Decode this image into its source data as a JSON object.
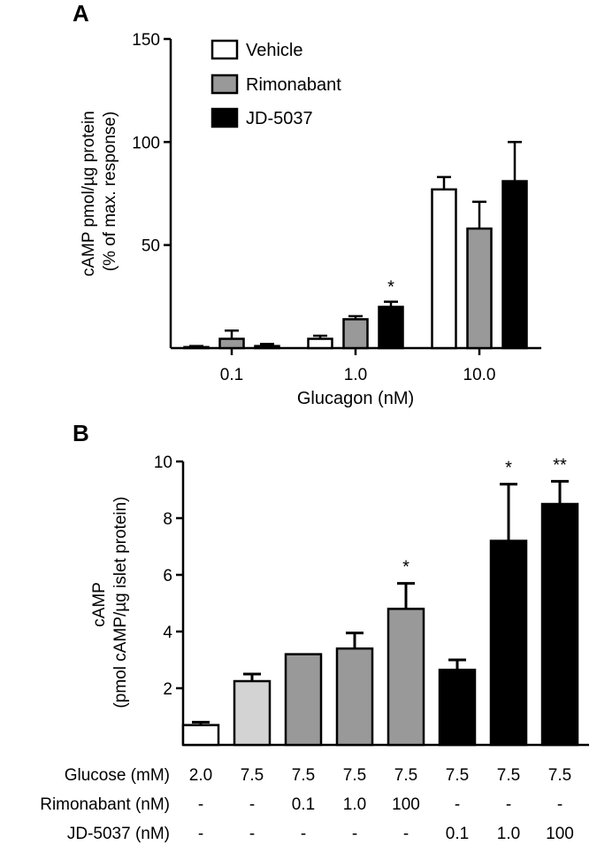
{
  "chart_data": [
    {
      "type": "bar",
      "panel_label": "A",
      "xlabel": "Glucagon (nM)",
      "ylabel_lines": [
        "cAMP pmol/µg protein",
        "(% of max. response)"
      ],
      "ylim": [
        0,
        150
      ],
      "yticks": [
        "50",
        "100",
        "150"
      ],
      "categories": [
        "0.1",
        "1.0",
        "10.0"
      ],
      "legend_position": "top-left",
      "series": [
        {
          "name": "Vehicle",
          "color": "#ffffff",
          "values": [
            0.5,
            4.5,
            77
          ],
          "errors": [
            0.5,
            1.5,
            6
          ]
        },
        {
          "name": "Rimonabant",
          "color": "#999999",
          "values": [
            4.5,
            14,
            58
          ],
          "errors": [
            4,
            1.5,
            13
          ]
        },
        {
          "name": "JD-5037",
          "color": "#000000",
          "values": [
            1,
            20,
            81
          ],
          "errors": [
            1,
            2.5,
            19
          ]
        }
      ],
      "annotations": [
        {
          "text": "*",
          "category": 1,
          "series": 2
        }
      ]
    },
    {
      "type": "bar",
      "panel_label": "B",
      "ylabel_lines": [
        "cAMP",
        "(pmol cAMP/µg islet protein)"
      ],
      "ylim": [
        0,
        10
      ],
      "yticks": [
        "2",
        "4",
        "6",
        "8",
        "10"
      ],
      "bars": [
        {
          "value": 0.7,
          "error": 0.1,
          "color": "#ffffff",
          "sig": ""
        },
        {
          "value": 2.25,
          "error": 0.25,
          "color": "#d3d3d3",
          "sig": ""
        },
        {
          "value": 3.2,
          "error": 0,
          "color": "#999999",
          "sig": ""
        },
        {
          "value": 3.4,
          "error": 0.55,
          "color": "#999999",
          "sig": ""
        },
        {
          "value": 4.8,
          "error": 0.9,
          "color": "#999999",
          "sig": "*"
        },
        {
          "value": 2.65,
          "error": 0.35,
          "color": "#000000",
          "sig": ""
        },
        {
          "value": 7.2,
          "error": 2.0,
          "color": "#000000",
          "sig": "*"
        },
        {
          "value": 8.5,
          "error": 0.8,
          "color": "#000000",
          "sig": "**"
        }
      ],
      "conditions": [
        {
          "label": "Glucose (mM)",
          "values": [
            "2.0",
            "7.5",
            "7.5",
            "7.5",
            "7.5",
            "7.5",
            "7.5",
            "7.5"
          ]
        },
        {
          "label": "Rimonabant (nM)",
          "values": [
            "-",
            "-",
            "0.1",
            "1.0",
            "100",
            "-",
            "-",
            "-"
          ]
        },
        {
          "label": "JD-5037 (nM)",
          "values": [
            "-",
            "-",
            "-",
            "-",
            "-",
            "0.1",
            "1.0",
            "100"
          ]
        }
      ]
    }
  ]
}
